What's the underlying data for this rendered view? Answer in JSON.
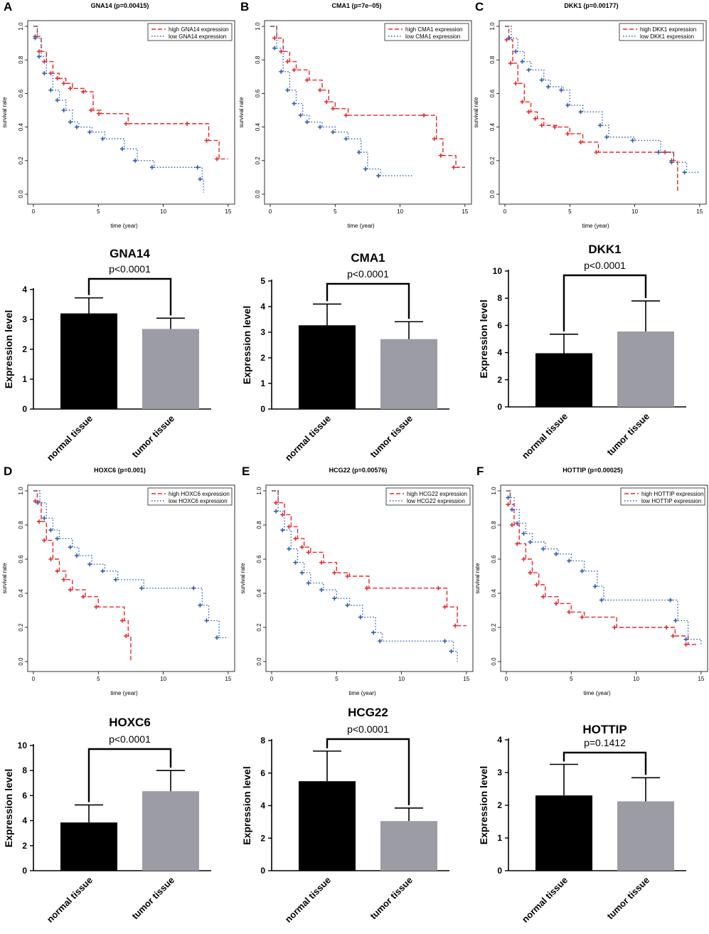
{
  "colors": {
    "high": "#e8282b",
    "low": "#2b5fb4",
    "normal_bar": "#000000",
    "tumor_bar": "#9c9ca4",
    "axis": "#000000"
  },
  "chart_data": [
    {
      "id": "A",
      "type": "line",
      "panel": "A",
      "title": "GNA14 (p=0.00415)",
      "xlabel": "time (year)",
      "ylabel": "survival rate",
      "xlim": [
        0,
        15.5
      ],
      "ylim": [
        0,
        1.0
      ],
      "xticks": [
        0,
        5,
        10,
        15
      ],
      "yticks": [
        0.0,
        0.2,
        0.4,
        0.6,
        0.8,
        1.0
      ],
      "series": [
        {
          "name": "high GNA14 expression",
          "style": "high",
          "x": [
            0,
            0.3,
            0.6,
            1.0,
            1.5,
            2.0,
            2.5,
            3.0,
            4.0,
            4.6,
            5.2,
            7.3,
            12.0,
            13.5,
            14.3,
            15.0
          ],
          "y": [
            1.0,
            0.94,
            0.85,
            0.79,
            0.72,
            0.69,
            0.66,
            0.63,
            0.61,
            0.5,
            0.48,
            0.42,
            0.42,
            0.32,
            0.21,
            0.21
          ]
        },
        {
          "name": "low GNA14 expression",
          "style": "low",
          "x": [
            0,
            0.3,
            0.6,
            1.0,
            1.5,
            2.0,
            2.5,
            3.0,
            3.5,
            4.5,
            5.5,
            7.0,
            8.0,
            9.3,
            12.8,
            13.0,
            13.1
          ],
          "y": [
            1.0,
            0.93,
            0.82,
            0.72,
            0.62,
            0.56,
            0.5,
            0.43,
            0.4,
            0.37,
            0.33,
            0.27,
            0.2,
            0.16,
            0.16,
            0.09,
            0.01
          ]
        }
      ]
    },
    {
      "id": "B",
      "type": "line",
      "panel": "B",
      "title": "CMA1 (p=7e−05)",
      "xlabel": "time (year)",
      "ylabel": "survival rate",
      "xlim": [
        0,
        15.5
      ],
      "ylim": [
        0,
        1.0
      ],
      "xticks": [
        0,
        5,
        10,
        15
      ],
      "yticks": [
        0.0,
        0.2,
        0.4,
        0.6,
        0.8,
        1.0
      ],
      "series": [
        {
          "name": "high CMA1 expression",
          "style": "high",
          "x": [
            0,
            0.5,
            1.0,
            1.5,
            2.0,
            3.0,
            4.0,
            4.5,
            5.0,
            6.0,
            12.0,
            12.8,
            13.3,
            14.3,
            15.0
          ],
          "y": [
            1.0,
            0.93,
            0.85,
            0.79,
            0.74,
            0.68,
            0.62,
            0.55,
            0.51,
            0.47,
            0.47,
            0.33,
            0.23,
            0.16,
            0.16
          ]
        },
        {
          "name": "low CMA1 expression",
          "style": "low",
          "x": [
            0,
            0.5,
            1.0,
            1.5,
            2.0,
            2.5,
            3.0,
            4.0,
            5.0,
            6.0,
            7.0,
            7.5,
            8.5,
            11.0
          ],
          "y": [
            1.0,
            0.87,
            0.73,
            0.62,
            0.54,
            0.47,
            0.43,
            0.4,
            0.37,
            0.33,
            0.25,
            0.15,
            0.11,
            0.11
          ]
        }
      ]
    },
    {
      "id": "C",
      "type": "line",
      "panel": "C",
      "title": "DKK1 (p=0.00177)",
      "xlabel": "time (year)",
      "ylabel": "survival rate",
      "xlim": [
        0,
        15.5
      ],
      "ylim": [
        0,
        1.0
      ],
      "xticks": [
        0,
        5,
        10,
        15
      ],
      "yticks": [
        0.0,
        0.2,
        0.4,
        0.6,
        0.8,
        1.0
      ],
      "series": [
        {
          "name": "high DKK1 expression",
          "style": "high",
          "x": [
            0,
            0.3,
            0.6,
            1.0,
            1.5,
            2.0,
            2.5,
            3.0,
            4.0,
            5.0,
            6.0,
            7.2,
            12.5,
            13.0,
            13.3
          ],
          "y": [
            1.0,
            0.92,
            0.78,
            0.66,
            0.55,
            0.49,
            0.45,
            0.41,
            0.4,
            0.36,
            0.31,
            0.25,
            0.25,
            0.2,
            0.01
          ]
        },
        {
          "name": "low DKK1 expression",
          "style": "low",
          "x": [
            0,
            0.5,
            1.0,
            1.5,
            2.0,
            3.0,
            3.5,
            4.5,
            5.0,
            6.0,
            7.5,
            8.0,
            10.0,
            12.0,
            13.0,
            14.0,
            15.0
          ],
          "y": [
            1.0,
            0.93,
            0.85,
            0.79,
            0.74,
            0.68,
            0.64,
            0.62,
            0.53,
            0.49,
            0.41,
            0.34,
            0.32,
            0.25,
            0.19,
            0.13,
            0.13
          ]
        }
      ]
    },
    {
      "id": "G",
      "type": "bar",
      "title": "GNA14",
      "pvalue": "p<0.0001",
      "ylabel": "Expression level",
      "ylim": [
        0,
        4
      ],
      "yticks": [
        0,
        1,
        2,
        3,
        4
      ],
      "categories": [
        "normal tissue",
        "tumor tissue"
      ],
      "values": [
        3.2,
        2.68
      ],
      "errors": [
        0.52,
        0.36
      ]
    },
    {
      "id": "H",
      "type": "bar",
      "title": "CMA1",
      "pvalue": "p<0.0001",
      "ylabel": "Expression level",
      "ylim": [
        0,
        5
      ],
      "yticks": [
        0,
        1,
        2,
        3,
        4,
        5
      ],
      "categories": [
        "normal tissue",
        "tumor tissue"
      ],
      "values": [
        3.27,
        2.73
      ],
      "errors": [
        0.83,
        0.68
      ]
    },
    {
      "id": "I",
      "type": "bar",
      "title": "DKK1",
      "pvalue": "p<0.0001",
      "ylabel": "Expression level",
      "ylim": [
        0,
        10
      ],
      "yticks": [
        0,
        2,
        4,
        6,
        8,
        10
      ],
      "categories": [
        "normal tissue",
        "tumor tissue"
      ],
      "values": [
        3.95,
        5.55
      ],
      "errors": [
        1.4,
        2.25
      ]
    },
    {
      "id": "D",
      "type": "line",
      "panel": "D",
      "title": "HOXC6 (p=0.001)",
      "xlabel": "time (year)",
      "ylabel": "survival rate",
      "xlim": [
        0,
        15.5
      ],
      "ylim": [
        0,
        1.0
      ],
      "xticks": [
        0,
        5,
        10,
        15
      ],
      "yticks": [
        0.0,
        0.2,
        0.4,
        0.6,
        0.8,
        1.0
      ],
      "series": [
        {
          "name": "high HOXC6 expression",
          "style": "high",
          "x": [
            0,
            0.3,
            0.6,
            1.0,
            1.5,
            2.0,
            2.5,
            3.0,
            4.0,
            5.0,
            7.0,
            7.3,
            7.5
          ],
          "y": [
            1.0,
            0.94,
            0.82,
            0.71,
            0.6,
            0.53,
            0.48,
            0.42,
            0.38,
            0.32,
            0.24,
            0.15,
            0.0
          ]
        },
        {
          "name": "low HOXC6 expression",
          "style": "low",
          "x": [
            0,
            0.5,
            1.0,
            1.5,
            2.0,
            3.0,
            3.5,
            4.5,
            5.5,
            6.5,
            8.5,
            12.5,
            13.0,
            13.5,
            14.3,
            15.0
          ],
          "y": [
            1.0,
            0.93,
            0.84,
            0.77,
            0.72,
            0.67,
            0.62,
            0.57,
            0.53,
            0.48,
            0.43,
            0.43,
            0.33,
            0.24,
            0.14,
            0.14
          ]
        }
      ]
    },
    {
      "id": "E",
      "type": "line",
      "panel": "E",
      "title": "HCG22 (p=0.00576)",
      "xlabel": "time (year)",
      "ylabel": "survival rate",
      "xlim": [
        0,
        15.5
      ],
      "ylim": [
        0,
        1.0
      ],
      "xticks": [
        0,
        5,
        10,
        15
      ],
      "yticks": [
        0.0,
        0.2,
        0.4,
        0.6,
        0.8,
        1.0
      ],
      "series": [
        {
          "name": "high HCG22 expression",
          "style": "high",
          "x": [
            0,
            0.5,
            1.0,
            1.5,
            2.0,
            2.5,
            3.0,
            4.0,
            5.0,
            6.0,
            7.5,
            13.0,
            13.5,
            14.3,
            15.0
          ],
          "y": [
            1.0,
            0.93,
            0.86,
            0.79,
            0.72,
            0.67,
            0.64,
            0.58,
            0.52,
            0.5,
            0.43,
            0.43,
            0.32,
            0.21,
            0.21
          ]
        },
        {
          "name": "low HCG22 expression",
          "style": "low",
          "x": [
            0,
            0.5,
            1.0,
            1.5,
            2.0,
            2.5,
            3.0,
            4.0,
            5.0,
            6.0,
            7.0,
            8.0,
            8.5,
            13.5,
            14.0,
            14.3
          ],
          "y": [
            1.0,
            0.88,
            0.77,
            0.66,
            0.58,
            0.52,
            0.46,
            0.42,
            0.37,
            0.33,
            0.26,
            0.17,
            0.12,
            0.12,
            0.06,
            0.0
          ]
        }
      ]
    },
    {
      "id": "F",
      "type": "line",
      "panel": "F",
      "title": "HOTTIP (p=0.00025)",
      "xlabel": "time (year)",
      "ylabel": "survival rate",
      "xlim": [
        0,
        15.5
      ],
      "ylim": [
        0,
        1.0
      ],
      "xticks": [
        0,
        5,
        10,
        15
      ],
      "yticks": [
        0.0,
        0.2,
        0.4,
        0.6,
        0.8,
        1.0
      ],
      "series": [
        {
          "name": "high HOTTIP expression",
          "style": "high",
          "x": [
            0,
            0.3,
            0.6,
            1.0,
            1.5,
            2.0,
            2.5,
            3.0,
            4.0,
            5.0,
            6.0,
            8.5,
            12.5,
            13.0,
            14.0,
            14.8
          ],
          "y": [
            1.0,
            0.92,
            0.8,
            0.69,
            0.6,
            0.52,
            0.45,
            0.38,
            0.34,
            0.29,
            0.26,
            0.2,
            0.2,
            0.15,
            0.1,
            0.1
          ]
        },
        {
          "name": "low HOTTIP expression",
          "style": "low",
          "x": [
            0,
            0.3,
            0.6,
            1.0,
            1.5,
            2.0,
            3.0,
            4.0,
            5.0,
            6.0,
            7.0,
            7.5,
            12.8,
            13.2,
            14.0,
            15.0
          ],
          "y": [
            1.0,
            0.96,
            0.89,
            0.81,
            0.75,
            0.7,
            0.66,
            0.63,
            0.59,
            0.53,
            0.44,
            0.36,
            0.36,
            0.24,
            0.13,
            0.09
          ]
        }
      ]
    },
    {
      "id": "J",
      "type": "bar",
      "title": "HOXC6",
      "pvalue": "p<0.0001",
      "ylabel": "Expression level",
      "ylim": [
        0,
        10
      ],
      "yticks": [
        0,
        2,
        4,
        6,
        8,
        10
      ],
      "categories": [
        "normal tissue",
        "tumor tissue"
      ],
      "values": [
        3.85,
        6.35
      ],
      "errors": [
        1.4,
        1.65
      ]
    },
    {
      "id": "K",
      "type": "bar",
      "title": "HCG22",
      "pvalue": "p<0.0001",
      "ylabel": "Expression level",
      "ylim": [
        0,
        8
      ],
      "yticks": [
        0,
        2,
        4,
        6,
        8
      ],
      "categories": [
        "normal tissue",
        "tumor tissue"
      ],
      "values": [
        5.5,
        3.05
      ],
      "errors": [
        1.85,
        0.8
      ]
    },
    {
      "id": "L",
      "type": "bar",
      "title": "HOTTIP",
      "pvalue": "p=0.1412",
      "ylabel": "Expression level",
      "ylim": [
        0,
        4
      ],
      "yticks": [
        0,
        1,
        2,
        3,
        4
      ],
      "categories": [
        "normal tissue",
        "tumor tissue"
      ],
      "values": [
        2.3,
        2.12
      ],
      "errors": [
        0.95,
        0.72
      ]
    }
  ]
}
